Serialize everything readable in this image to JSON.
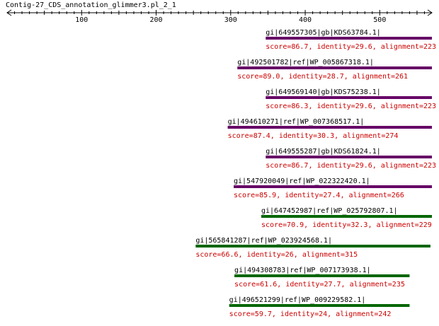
{
  "title": "Contig-27_CDS_annotation_glimmer3.pl_2_1",
  "axis": {
    "max": 570,
    "tick_labels": [
      "100",
      "200",
      "300",
      "400",
      "500"
    ],
    "ticks": [
      100,
      200,
      300,
      400,
      500
    ]
  },
  "colors": {
    "high_score": "#660066",
    "low_score": "#006600",
    "stats_text": "#cc0000"
  },
  "hits": [
    {
      "name": "gi|649557305|gb|KDS63784.1|",
      "stats": "score=86.7, identity=29.6, alignment=223",
      "start": 347,
      "end": 570,
      "color_key": "high_score"
    },
    {
      "name": "gi|492501782|ref|WP_005867318.1|",
      "stats": "score=89.0, identity=28.7, alignment=261",
      "start": 309,
      "end": 570,
      "color_key": "high_score"
    },
    {
      "name": "gi|649569140|gb|KDS75238.1|",
      "stats": "score=86.3, identity=29.6, alignment=223",
      "start": 347,
      "end": 570,
      "color_key": "high_score"
    },
    {
      "name": "gi|494610271|ref|WP_007368517.1|",
      "stats": "score=87.4, identity=30.3, alignment=274",
      "start": 296,
      "end": 570,
      "color_key": "high_score"
    },
    {
      "name": "gi|649555287|gb|KDS61824.1|",
      "stats": "score=86.7, identity=29.6, alignment=223",
      "start": 347,
      "end": 570,
      "color_key": "high_score"
    },
    {
      "name": "gi|547920049|ref|WP_022322420.1|",
      "stats": "score=85.9, identity=27.4, alignment=266",
      "start": 304,
      "end": 570,
      "color_key": "high_score"
    },
    {
      "name": "gi|647452987|ref|WP_025792807.1|",
      "stats": "score=70.9, identity=32.3, alignment=229",
      "start": 341,
      "end": 570,
      "color_key": "low_score"
    },
    {
      "name": "gi|565841287|ref|WP_023924568.1|",
      "stats": "score=66.6, identity=26, alignment=315",
      "start": 253,
      "end": 568,
      "color_key": "low_score"
    },
    {
      "name": "gi|494308783|ref|WP_007173938.1|",
      "stats": "score=61.6, identity=27.7, alignment=235",
      "start": 305,
      "end": 540,
      "color_key": "low_score"
    },
    {
      "name": "gi|496521299|ref|WP_009229582.1|",
      "stats": "score=59.7, identity=24, alignment=242",
      "start": 298,
      "end": 540,
      "color_key": "low_score"
    }
  ]
}
